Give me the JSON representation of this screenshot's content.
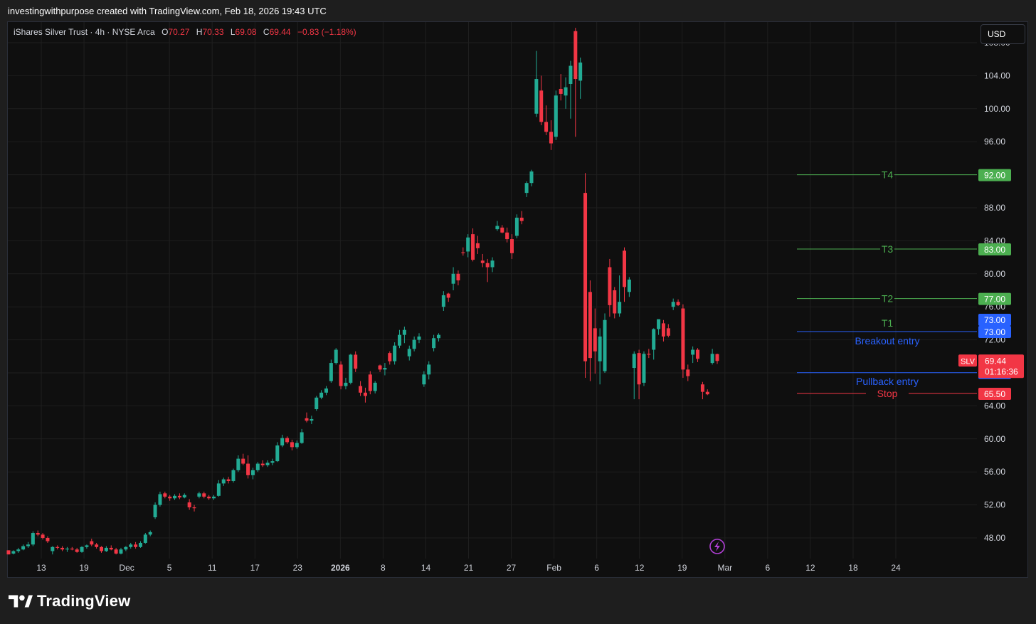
{
  "header": {
    "caption": "investingwithpurpose created with TradingView.com, Feb 18, 2026 19:43 UTC"
  },
  "legend": {
    "symbol": "iShares Silver Trust · 4h · NYSE Arca",
    "o_label": "O",
    "o": "70.27",
    "h_label": "H",
    "h": "70.33",
    "l_label": "L",
    "l": "69.08",
    "c_label": "C",
    "c": "69.44",
    "change": "−0.83 (−1.18%)"
  },
  "currency_button": "USD",
  "brand": {
    "name": "TradingView"
  },
  "colors": {
    "up": "#22ab94",
    "down": "#f23645",
    "target": "#4caf50",
    "entry": "#2962ff",
    "grid": "#1f1f1f",
    "background": "#0f0f0f"
  },
  "chart_data": {
    "type": "candlestick",
    "symbol": "SLV",
    "interval": "4h",
    "ylim": [
      45.5,
      110.5
    ],
    "y_ticks": [
      "48.00",
      "52.00",
      "56.00",
      "60.00",
      "64.00",
      "68.00",
      "72.00",
      "76.00",
      "80.00",
      "84.00",
      "88.00",
      "92.00",
      "96.00",
      "100.00",
      "104.00",
      "108.00"
    ],
    "x_ticks": [
      "13",
      "19",
      "Dec",
      "5",
      "11",
      "17",
      "23",
      "2026",
      "8",
      "14",
      "21",
      "27",
      "Feb",
      "6",
      "12",
      "19",
      "Mar",
      "6",
      "12",
      "18",
      "24"
    ],
    "candles": [
      [
        46.5,
        46.5,
        46.0,
        46.0
      ],
      [
        46.1,
        46.5,
        46.0,
        46.4
      ],
      [
        46.4,
        46.8,
        46.2,
        46.6
      ],
      [
        46.6,
        47.2,
        46.5,
        47.0
      ],
      [
        47.0,
        47.5,
        46.8,
        47.2
      ],
      [
        47.2,
        48.8,
        47.0,
        48.6
      ],
      [
        48.6,
        48.9,
        48.2,
        48.4
      ],
      [
        48.4,
        48.6,
        47.8,
        48.0
      ],
      [
        48.0,
        48.2,
        47.4,
        47.6
      ],
      [
        46.4,
        47.0,
        46.0,
        46.9
      ],
      [
        46.9,
        47.1,
        46.6,
        46.8
      ],
      [
        46.8,
        47.0,
        46.4,
        46.6
      ],
      [
        46.6,
        46.9,
        46.3,
        46.7
      ],
      [
        46.7,
        46.9,
        46.5,
        46.6
      ],
      [
        46.6,
        46.8,
        46.2,
        46.3
      ],
      [
        46.3,
        47.0,
        46.2,
        46.9
      ],
      [
        46.9,
        47.2,
        46.7,
        47.1
      ],
      [
        47.6,
        47.9,
        47.0,
        47.2
      ],
      [
        47.2,
        47.4,
        46.7,
        46.9
      ],
      [
        46.9,
        47.0,
        46.2,
        46.4
      ],
      [
        46.4,
        47.0,
        46.3,
        46.8
      ],
      [
        46.8,
        47.1,
        46.5,
        46.6
      ],
      [
        46.6,
        46.8,
        46.0,
        46.1
      ],
      [
        46.1,
        46.8,
        46.0,
        46.6
      ],
      [
        46.6,
        47.0,
        46.4,
        46.9
      ],
      [
        46.9,
        47.4,
        46.7,
        47.2
      ],
      [
        47.2,
        47.5,
        46.7,
        46.9
      ],
      [
        46.9,
        47.6,
        46.8,
        47.4
      ],
      [
        47.4,
        48.6,
        47.3,
        48.4
      ],
      [
        48.4,
        48.9,
        48.2,
        48.7
      ],
      [
        50.5,
        52.3,
        50.3,
        52.0
      ],
      [
        52.0,
        53.6,
        51.8,
        53.3
      ],
      [
        53.4,
        53.6,
        52.8,
        53.0
      ],
      [
        53.0,
        53.2,
        52.5,
        52.8
      ],
      [
        52.8,
        53.3,
        52.6,
        53.1
      ],
      [
        53.1,
        53.4,
        52.7,
        52.9
      ],
      [
        52.9,
        53.4,
        52.8,
        53.2
      ],
      [
        52.3,
        52.7,
        51.4,
        51.7
      ],
      [
        51.7,
        52.0,
        51.2,
        51.6
      ],
      [
        53.0,
        53.6,
        52.8,
        53.4
      ],
      [
        53.4,
        53.6,
        52.8,
        53.0
      ],
      [
        53.0,
        53.2,
        52.6,
        52.8
      ],
      [
        52.8,
        53.2,
        52.6,
        53.0
      ],
      [
        53.1,
        55.0,
        53.0,
        54.6
      ],
      [
        54.6,
        55.3,
        54.3,
        55.1
      ],
      [
        55.1,
        55.4,
        54.6,
        54.9
      ],
      [
        54.9,
        56.4,
        54.7,
        56.2
      ],
      [
        56.2,
        58.0,
        56.0,
        57.6
      ],
      [
        57.6,
        58.2,
        56.8,
        57.0
      ],
      [
        57.0,
        58.0,
        55.2,
        55.6
      ],
      [
        55.6,
        56.5,
        55.1,
        56.2
      ],
      [
        56.2,
        57.2,
        56.0,
        57.0
      ],
      [
        57.0,
        57.4,
        56.6,
        56.8
      ],
      [
        56.8,
        57.4,
        56.6,
        57.1
      ],
      [
        57.1,
        57.6,
        56.8,
        57.3
      ],
      [
        57.3,
        59.6,
        57.2,
        59.2
      ],
      [
        59.2,
        60.5,
        59.0,
        60.1
      ],
      [
        60.1,
        60.3,
        59.4,
        59.6
      ],
      [
        59.6,
        59.9,
        58.6,
        59.0
      ],
      [
        59.0,
        59.8,
        58.8,
        59.5
      ],
      [
        59.5,
        61.2,
        59.4,
        60.8
      ],
      [
        62.5,
        63.2,
        62.0,
        62.2
      ],
      [
        62.2,
        62.8,
        61.8,
        62.4
      ],
      [
        63.6,
        65.2,
        63.4,
        65.0
      ],
      [
        65.0,
        65.9,
        64.8,
        65.6
      ],
      [
        65.6,
        66.4,
        65.3,
        66.1
      ],
      [
        67.0,
        69.6,
        66.8,
        69.2
      ],
      [
        69.2,
        71.0,
        69.0,
        70.8
      ],
      [
        69.0,
        69.4,
        66.0,
        66.4
      ],
      [
        66.4,
        67.4,
        66.0,
        66.8
      ],
      [
        66.8,
        70.3,
        66.6,
        70.2
      ],
      [
        70.2,
        70.6,
        68.1,
        68.5
      ],
      [
        66.4,
        67.0,
        65.2,
        65.6
      ],
      [
        65.6,
        66.2,
        64.4,
        65.2
      ],
      [
        67.8,
        68.2,
        65.4,
        65.8
      ],
      [
        65.8,
        67.0,
        65.5,
        66.8
      ],
      [
        68.9,
        69.0,
        68.1,
        68.4
      ],
      [
        68.4,
        69.2,
        67.7,
        68.6
      ],
      [
        70.4,
        70.6,
        69.0,
        69.4
      ],
      [
        69.4,
        71.7,
        69.0,
        71.3
      ],
      [
        71.3,
        73.2,
        71.0,
        72.6
      ],
      [
        72.6,
        73.6,
        71.6,
        73.2
      ],
      [
        70.0,
        71.3,
        69.5,
        70.9
      ],
      [
        70.9,
        72.4,
        70.6,
        72.0
      ],
      [
        72.0,
        72.8,
        71.6,
        72.4
      ],
      [
        66.6,
        68.2,
        66.3,
        67.8
      ],
      [
        67.8,
        69.4,
        67.2,
        69.0
      ],
      [
        71.0,
        72.6,
        70.6,
        72.2
      ],
      [
        72.2,
        72.8,
        71.8,
        72.6
      ],
      [
        76.0,
        77.9,
        75.5,
        77.4
      ],
      [
        77.6,
        77.7,
        76.6,
        77.1
      ],
      [
        78.8,
        80.8,
        78.0,
        80.0
      ],
      [
        80.0,
        80.4,
        78.6,
        79.2
      ],
      [
        82.6,
        83.2,
        82.2,
        82.5
      ],
      [
        82.7,
        84.8,
        82.0,
        84.4
      ],
      [
        84.8,
        85.5,
        81.5,
        81.7
      ],
      [
        83.7,
        84.6,
        82.4,
        83.1
      ],
      [
        81.6,
        82.4,
        80.8,
        81.3
      ],
      [
        81.3,
        81.8,
        79.0,
        80.8
      ],
      [
        80.8,
        82.0,
        80.2,
        81.6
      ],
      [
        85.4,
        86.4,
        85.2,
        85.8
      ],
      [
        85.6,
        85.9,
        84.9,
        85.0
      ],
      [
        85.0,
        85.6,
        83.8,
        84.2
      ],
      [
        84.2,
        84.8,
        81.8,
        82.5
      ],
      [
        84.6,
        87.2,
        84.3,
        86.8
      ],
      [
        86.8,
        87.6,
        86.0,
        86.4
      ],
      [
        89.8,
        91.2,
        89.3,
        91.0
      ],
      [
        91.0,
        92.6,
        90.6,
        92.4
      ],
      [
        99.4,
        107.0,
        99.0,
        103.6
      ],
      [
        102.2,
        104.0,
        98.0,
        98.4
      ],
      [
        98.4,
        100.4,
        96.8,
        97.2
      ],
      [
        97.2,
        98.6,
        95.0,
        95.8
      ],
      [
        96.6,
        102.2,
        96.2,
        101.6
      ],
      [
        102.4,
        104.2,
        101.0,
        101.8
      ],
      [
        101.6,
        103.8,
        100.0,
        102.6
      ],
      [
        103.0,
        105.8,
        98.8,
        105.2
      ],
      [
        109.4,
        109.8,
        96.6,
        103.6
      ],
      [
        103.4,
        106.2,
        101.2,
        105.6
      ],
      [
        89.8,
        92.2,
        67.4,
        69.4
      ],
      [
        77.8,
        79.2,
        67.0,
        69.8
      ],
      [
        73.4,
        75.8,
        67.9,
        70.6
      ],
      [
        69.4,
        73.4,
        66.6,
        72.4
      ],
      [
        68.2,
        75.2,
        68.0,
        74.4
      ],
      [
        80.8,
        81.8,
        74.8,
        76.2
      ],
      [
        78.0,
        78.4,
        74.6,
        75.2
      ],
      [
        75.2,
        79.8,
        74.8,
        76.6
      ],
      [
        82.8,
        83.2,
        76.6,
        78.4
      ],
      [
        77.8,
        79.6,
        77.2,
        79.3
      ],
      [
        68.6,
        70.6,
        64.8,
        70.3
      ],
      [
        70.4,
        70.8,
        64.8,
        66.6
      ],
      [
        66.8,
        70.6,
        66.4,
        70.3
      ],
      [
        70.3,
        70.9,
        69.8,
        70.2
      ],
      [
        70.8,
        73.4,
        69.6,
        73.3
      ],
      [
        73.3,
        74.0,
        72.6,
        74.5
      ],
      [
        74.0,
        74.4,
        71.8,
        72.4
      ],
      [
        73.4,
        73.9,
        72.3,
        72.5
      ],
      [
        76.0,
        77.0,
        75.6,
        76.6
      ],
      [
        76.6,
        76.9,
        76.1,
        76.2
      ],
      [
        75.8,
        76.3,
        67.4,
        68.4
      ],
      [
        68.4,
        69.0,
        67.0,
        67.6
      ],
      [
        70.2,
        71.2,
        69.2,
        70.8
      ],
      [
        70.8,
        71.0,
        69.3,
        69.7
      ],
      [
        66.6,
        66.9,
        64.8,
        65.7
      ],
      [
        65.7,
        66.0,
        65.3,
        65.4
      ],
      [
        69.2,
        70.9,
        69.0,
        70.3
      ],
      [
        70.27,
        70.33,
        69.08,
        69.44
      ]
    ],
    "levels": [
      {
        "name": "T4",
        "value": 92.0,
        "label": "92.00",
        "kind": "target"
      },
      {
        "name": "T3",
        "value": 83.0,
        "label": "83.00",
        "kind": "target"
      },
      {
        "name": "T2",
        "value": 77.0,
        "label": "77.00",
        "kind": "target"
      },
      {
        "name": "T1",
        "value": 73.0,
        "label": "73.00",
        "kind": "target"
      },
      {
        "name": "Breakout entry",
        "value": 73.0,
        "label": "73.00",
        "kind": "entry"
      },
      {
        "name": "Pullback entry",
        "value": 68.02,
        "label": "68.02",
        "kind": "entry"
      },
      {
        "name": "Stop",
        "value": 65.5,
        "label": "65.50",
        "kind": "stop"
      }
    ],
    "last_price": {
      "symbol": "SLV",
      "value": "69.44",
      "countdown": "01:16:36"
    }
  }
}
